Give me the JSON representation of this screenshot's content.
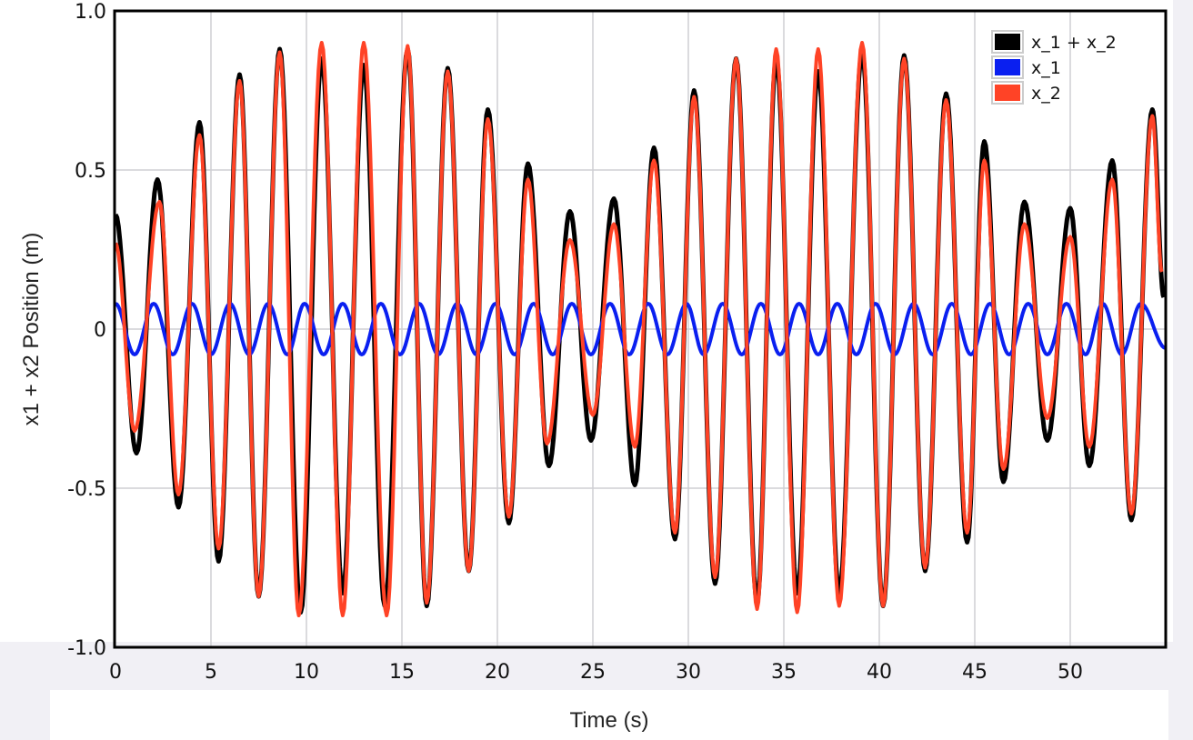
{
  "chart_data": {
    "type": "line",
    "title": "",
    "xlabel": "Time (s)",
    "ylabel": "x1 + x2 Position (m)",
    "xlim": [
      0,
      55
    ],
    "ylim": [
      -1.0,
      1.0
    ],
    "xticks": [
      0,
      5,
      10,
      15,
      20,
      25,
      30,
      35,
      40,
      45,
      50
    ],
    "xtick_labels": [
      "0",
      "5",
      "10",
      "15",
      "20",
      "25",
      "30",
      "35",
      "40",
      "45",
      "50"
    ],
    "yticks": [
      1.0,
      0.5,
      0,
      -0.5,
      -1.0
    ],
    "ytick_labels": [
      "1.0",
      "0.5",
      "0",
      "-0.5",
      "-1.0"
    ],
    "grid": true,
    "legend_position": "top-right",
    "note_on_points": "series points are the local extrema (and end points) read off the curves",
    "series": [
      {
        "name": "x_1 + x_2",
        "color": "#000000",
        "points": [
          [
            0,
            0.36
          ],
          [
            1.1,
            -0.39
          ],
          [
            2.2,
            0.47
          ],
          [
            3.3,
            -0.56
          ],
          [
            4.4,
            0.65
          ],
          [
            5.4,
            -0.73
          ],
          [
            6.5,
            0.8
          ],
          [
            7.5,
            -0.84
          ],
          [
            8.6,
            0.88
          ],
          [
            9.7,
            -0.89
          ],
          [
            10.8,
            0.85
          ],
          [
            11.9,
            -0.83
          ],
          [
            13.0,
            0.83
          ],
          [
            14.1,
            -0.87
          ],
          [
            15.3,
            0.88
          ],
          [
            16.3,
            -0.87
          ],
          [
            17.4,
            0.82
          ],
          [
            18.5,
            -0.76
          ],
          [
            19.5,
            0.69
          ],
          [
            20.6,
            -0.61
          ],
          [
            21.6,
            0.52
          ],
          [
            22.7,
            -0.43
          ],
          [
            23.8,
            0.37
          ],
          [
            24.9,
            -0.35
          ],
          [
            26.1,
            0.41
          ],
          [
            27.2,
            -0.49
          ],
          [
            28.2,
            0.57
          ],
          [
            29.3,
            -0.66
          ],
          [
            30.3,
            0.75
          ],
          [
            31.4,
            -0.8
          ],
          [
            32.5,
            0.85
          ],
          [
            33.6,
            -0.86
          ],
          [
            34.6,
            0.85
          ],
          [
            35.7,
            -0.83
          ],
          [
            36.8,
            0.81
          ],
          [
            37.9,
            -0.83
          ],
          [
            39.1,
            0.87
          ],
          [
            40.2,
            -0.87
          ],
          [
            41.3,
            0.86
          ],
          [
            42.4,
            -0.76
          ],
          [
            43.5,
            0.74
          ],
          [
            44.6,
            -0.67
          ],
          [
            45.5,
            0.59
          ],
          [
            46.5,
            -0.48
          ],
          [
            47.6,
            0.4
          ],
          [
            48.8,
            -0.35
          ],
          [
            50.0,
            0.38
          ],
          [
            51.0,
            -0.43
          ],
          [
            52.2,
            0.53
          ],
          [
            53.2,
            -0.6
          ],
          [
            54.3,
            0.69
          ],
          [
            54.9,
            0.1
          ]
        ]
      },
      {
        "name": "x_1",
        "color": "#0a1ff0",
        "points": [
          [
            0,
            0.08
          ],
          [
            1.0,
            -0.08
          ],
          [
            2.0,
            0.08
          ],
          [
            3.0,
            -0.08
          ],
          [
            4.0,
            0.08
          ],
          [
            5.0,
            -0.08
          ],
          [
            6.0,
            0.08
          ],
          [
            7.0,
            -0.08
          ],
          [
            8.0,
            0.08
          ],
          [
            9.0,
            -0.08
          ],
          [
            9.9,
            0.08
          ],
          [
            10.9,
            -0.08
          ],
          [
            11.9,
            0.08
          ],
          [
            12.9,
            -0.08
          ],
          [
            13.9,
            0.08
          ],
          [
            14.9,
            -0.08
          ],
          [
            15.9,
            0.08
          ],
          [
            16.9,
            -0.08
          ],
          [
            17.9,
            0.08
          ],
          [
            18.9,
            -0.08
          ],
          [
            19.9,
            0.08
          ],
          [
            20.9,
            -0.08
          ],
          [
            21.9,
            0.08
          ],
          [
            22.9,
            -0.08
          ],
          [
            23.9,
            0.08
          ],
          [
            24.9,
            -0.08
          ],
          [
            25.9,
            0.08
          ],
          [
            26.9,
            -0.08
          ],
          [
            27.9,
            0.08
          ],
          [
            28.9,
            -0.08
          ],
          [
            29.9,
            0.08
          ],
          [
            30.8,
            -0.08
          ],
          [
            31.8,
            0.08
          ],
          [
            32.8,
            -0.08
          ],
          [
            33.8,
            0.08
          ],
          [
            34.8,
            -0.08
          ],
          [
            35.8,
            0.08
          ],
          [
            36.8,
            -0.08
          ],
          [
            37.8,
            0.08
          ],
          [
            38.8,
            -0.08
          ],
          [
            39.8,
            0.08
          ],
          [
            40.8,
            -0.08
          ],
          [
            41.8,
            0.08
          ],
          [
            42.8,
            -0.08
          ],
          [
            43.8,
            0.08
          ],
          [
            44.8,
            -0.08
          ],
          [
            45.8,
            0.08
          ],
          [
            46.8,
            -0.08
          ],
          [
            47.8,
            0.08
          ],
          [
            48.8,
            -0.08
          ],
          [
            49.8,
            0.08
          ],
          [
            50.8,
            -0.08
          ],
          [
            51.7,
            0.08
          ],
          [
            52.7,
            -0.08
          ],
          [
            53.7,
            0.08
          ],
          [
            55.0,
            -0.06
          ]
        ]
      },
      {
        "name": "x_2",
        "color": "#ff4326",
        "points": [
          [
            0,
            0.27
          ],
          [
            1.0,
            -0.32
          ],
          [
            2.3,
            0.4
          ],
          [
            3.3,
            -0.52
          ],
          [
            4.4,
            0.61
          ],
          [
            5.4,
            -0.69
          ],
          [
            6.5,
            0.78
          ],
          [
            7.5,
            -0.84
          ],
          [
            8.6,
            0.87
          ],
          [
            9.6,
            -0.9
          ],
          [
            10.8,
            0.9
          ],
          [
            11.9,
            -0.9
          ],
          [
            13.0,
            0.9
          ],
          [
            14.2,
            -0.9
          ],
          [
            15.3,
            0.89
          ],
          [
            16.3,
            -0.86
          ],
          [
            17.4,
            0.81
          ],
          [
            18.5,
            -0.76
          ],
          [
            19.5,
            0.66
          ],
          [
            20.6,
            -0.59
          ],
          [
            21.6,
            0.47
          ],
          [
            22.6,
            -0.36
          ],
          [
            23.8,
            0.28
          ],
          [
            25.0,
            -0.27
          ],
          [
            26.1,
            0.33
          ],
          [
            27.2,
            -0.37
          ],
          [
            28.2,
            0.53
          ],
          [
            29.3,
            -0.64
          ],
          [
            30.3,
            0.73
          ],
          [
            31.4,
            -0.78
          ],
          [
            32.5,
            0.85
          ],
          [
            33.6,
            -0.88
          ],
          [
            34.6,
            0.88
          ],
          [
            35.7,
            -0.89
          ],
          [
            36.8,
            0.88
          ],
          [
            37.9,
            -0.87
          ],
          [
            39.1,
            0.9
          ],
          [
            40.2,
            -0.87
          ],
          [
            41.3,
            0.85
          ],
          [
            42.4,
            -0.75
          ],
          [
            43.5,
            0.72
          ],
          [
            44.6,
            -0.64
          ],
          [
            45.5,
            0.53
          ],
          [
            46.5,
            -0.44
          ],
          [
            47.6,
            0.33
          ],
          [
            48.8,
            -0.28
          ],
          [
            50.0,
            0.29
          ],
          [
            51.0,
            -0.37
          ],
          [
            52.2,
            0.47
          ],
          [
            53.2,
            -0.58
          ],
          [
            54.3,
            0.67
          ],
          [
            54.8,
            0.18
          ]
        ]
      }
    ]
  }
}
